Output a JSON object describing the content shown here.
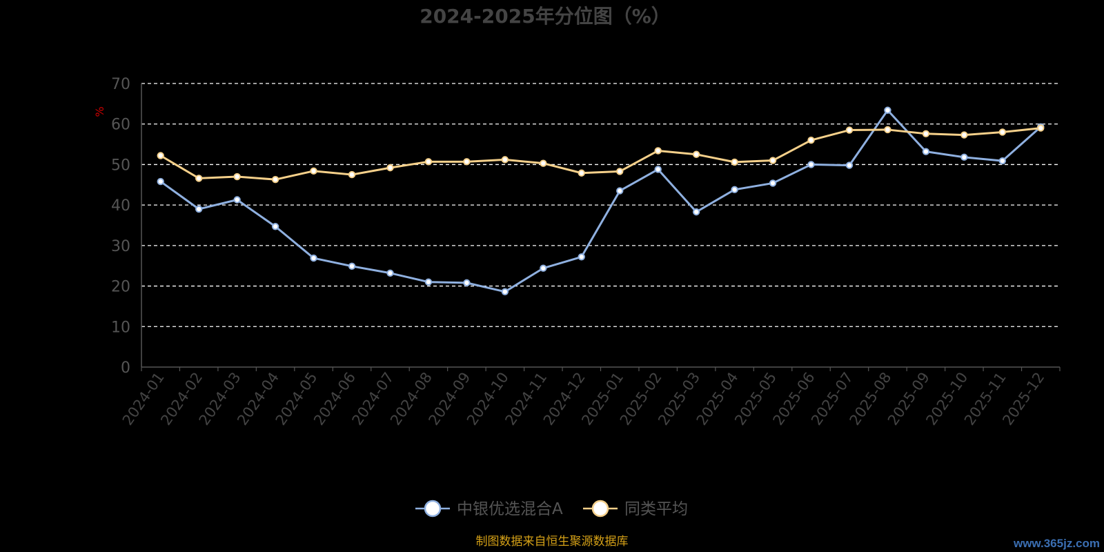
{
  "chart_data": {
    "type": "line",
    "title": "2024-2025年分位图（%）",
    "ylabel": "%",
    "xlabel": "",
    "ylim": [
      0,
      70
    ],
    "yticks": [
      0,
      10,
      20,
      30,
      40,
      50,
      60,
      70
    ],
    "grid": true,
    "legend_position": "bottom-center",
    "categories": [
      "2024-01",
      "2024-02",
      "2024-03",
      "2024-04",
      "2024-05",
      "2024-06",
      "2024-07",
      "2024-08",
      "2024-09",
      "2024-10",
      "2024-11",
      "2024-12",
      "2025-01",
      "2025-02",
      "2025-03",
      "2025-04",
      "2025-05",
      "2025-06",
      "2025-07",
      "2025-08",
      "2025-09",
      "2025-10",
      "2025-11",
      "2025-12"
    ],
    "series": [
      {
        "name": "中银优选混合A",
        "color": "#8fb0e0",
        "values": [
          45.8,
          39.0,
          41.3,
          34.7,
          26.9,
          24.9,
          23.2,
          21.0,
          20.8,
          18.6,
          24.4,
          27.2,
          43.5,
          48.8,
          38.3,
          43.8,
          45.4,
          50.0,
          49.8,
          63.4,
          53.2,
          51.8,
          50.9,
          59.3
        ]
      },
      {
        "name": "同类平均",
        "color": "#f5d08a",
        "values": [
          52.2,
          46.6,
          47.0,
          46.3,
          48.4,
          47.5,
          49.2,
          50.7,
          50.7,
          51.2,
          50.3,
          47.9,
          48.3,
          53.4,
          52.5,
          50.6,
          51.0,
          56.0,
          58.5,
          58.6,
          57.6,
          57.3,
          58.0,
          59.0
        ]
      }
    ],
    "source_note": "制图数据来自恒生聚源数据库",
    "watermark": "www.365jz.com"
  },
  "colors": {
    "background": "#000000",
    "title": "#444444",
    "axis": "#555555",
    "grid": "#ffffff",
    "ylabel": "#cc0000",
    "legend_text": "#555555",
    "source_note": "#d4a017"
  }
}
